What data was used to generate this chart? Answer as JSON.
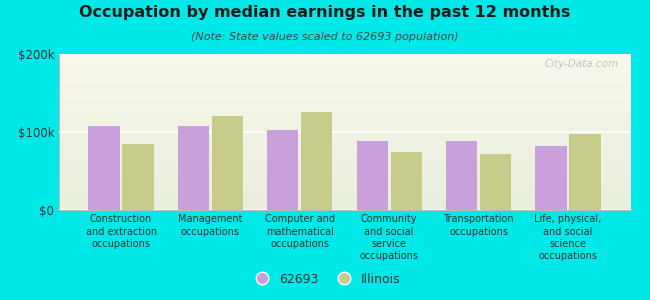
{
  "title": "Occupation by median earnings in the past 12 months",
  "subtitle": "(Note: State values scaled to 62693 population)",
  "background_color": "#00e8e8",
  "plot_bg_top": "#f8f8ec",
  "plot_bg_bottom": "#e8eedc",
  "categories": [
    "Construction\nand extraction\noccupations",
    "Management\noccupations",
    "Computer and\nmathematical\noccupations",
    "Community\nand social\nservice\noccupations",
    "Transportation\noccupations",
    "Life, physical,\nand social\nscience\noccupations"
  ],
  "values_62693": [
    108000,
    108000,
    102000,
    88000,
    88000,
    82000
  ],
  "values_illinois": [
    85000,
    120000,
    125000,
    75000,
    72000,
    97000
  ],
  "color_62693": "#c9a0dc",
  "color_illinois": "#c8cc8a",
  "ylim": [
    0,
    200000
  ],
  "yticks": [
    0,
    100000,
    200000
  ],
  "ytick_labels": [
    "$0",
    "$100k",
    "$200k"
  ],
  "legend_label_62693": "62693",
  "legend_label_illinois": "Illinois",
  "watermark": "City-Data.com"
}
